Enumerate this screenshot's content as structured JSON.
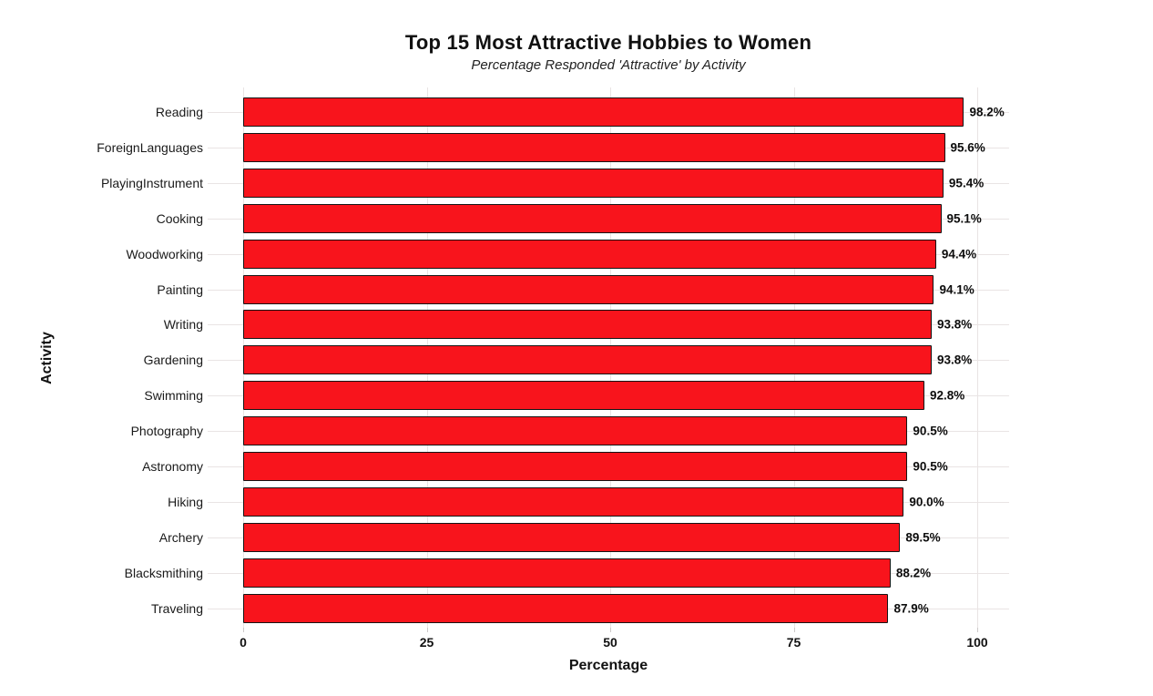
{
  "chart_data": {
    "type": "bar",
    "orientation": "horizontal",
    "title": "Top 15 Most Attractive Hobbies to Women",
    "subtitle": "Percentage Responded 'Attractive' by Activity",
    "xlabel": "Percentage",
    "ylabel": "Activity",
    "categories": [
      "Reading",
      "ForeignLanguages",
      "PlayingInstrument",
      "Cooking",
      "Woodworking",
      "Painting",
      "Writing",
      "Gardening",
      "Swimming",
      "Photography",
      "Astronomy",
      "Hiking",
      "Archery",
      "Blacksmithing",
      "Traveling"
    ],
    "values": [
      98.2,
      95.6,
      95.4,
      95.1,
      94.4,
      94.1,
      93.8,
      93.8,
      92.8,
      90.5,
      90.5,
      90.0,
      89.5,
      88.2,
      87.9
    ],
    "value_labels": [
      "98.2%",
      "95.6%",
      "95.4%",
      "95.1%",
      "94.4%",
      "94.1%",
      "93.8%",
      "93.8%",
      "92.8%",
      "90.5%",
      "90.5%",
      "90.0%",
      "89.5%",
      "88.2%",
      "87.9%"
    ],
    "xticks": [
      0,
      25,
      50,
      75,
      100
    ],
    "xtick_labels": [
      "0",
      "25",
      "50",
      "75",
      "100"
    ],
    "xlim": [
      -4.85,
      104.3
    ],
    "grid": true,
    "legend": "none",
    "colors": {
      "bar_fill": "#f8141c",
      "bar_border": "#141414",
      "grid": "#e9e4e4",
      "tick": "#cdc9c9",
      "text": "#111111"
    }
  }
}
